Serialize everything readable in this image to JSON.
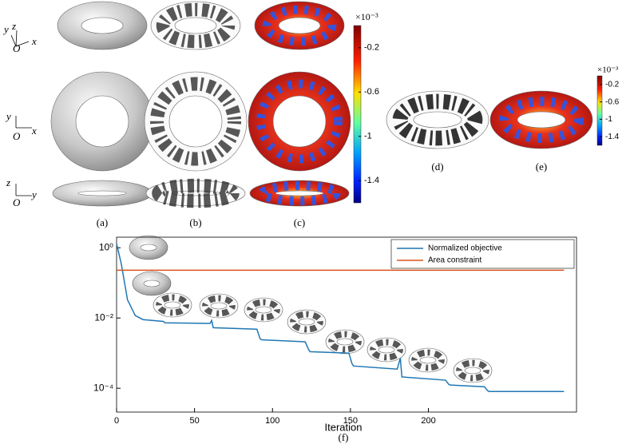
{
  "panels": {
    "labels": [
      "(a)",
      "(b)",
      "(c)",
      "(d)",
      "(e)",
      "(f)"
    ],
    "triads": [
      [
        "y",
        "z",
        "O",
        "x"
      ],
      [
        "y",
        "O",
        "x"
      ],
      [
        "z",
        "O",
        "y"
      ]
    ],
    "colorbars": [
      {
        "label": "×10⁻³",
        "lim": [
          0,
          -1.6
        ],
        "ticks": [
          -0.2,
          -0.6,
          -1.0,
          -1.4
        ]
      },
      {
        "label": "×10⁻³",
        "lim": [
          0,
          -1.6
        ],
        "ticks": [
          -0.2,
          -0.6,
          -1.0,
          -1.4
        ]
      }
    ]
  },
  "chart_data": {
    "type": "line",
    "xlabel": "Iteration",
    "log_y": true,
    "legend": "upper right",
    "x": [
      0,
      3,
      7,
      12,
      17,
      30,
      31,
      60,
      61,
      62,
      90,
      92,
      93,
      121,
      123,
      124,
      149,
      151,
      152,
      180,
      182,
      183,
      211,
      213,
      214,
      236,
      238,
      239,
      287
    ],
    "series": [
      {
        "name": "Normalized objective",
        "color": "#1f77b4",
        "values": [
          1.3,
          0.35,
          0.033,
          0.0117,
          0.009,
          0.008,
          0.0073,
          0.007,
          0.0085,
          0.0053,
          0.0048,
          0.0026,
          0.0024,
          0.0021,
          0.0013,
          0.0011,
          0.001,
          0.0005,
          0.00043,
          0.00035,
          0.00072,
          0.00021,
          0.00017,
          0.00013,
          0.000124,
          0.00011,
          8.5e-05,
          8.1e-05,
          8.1e-05
        ]
      },
      {
        "name": "Area constraint",
        "color": "#d95319",
        "values": [
          0.23,
          0.23,
          0.23,
          0.23,
          0.23,
          0.23,
          0.23,
          0.23,
          0.23,
          0.23,
          0.23,
          0.23,
          0.23,
          0.23,
          0.23,
          0.23,
          0.23,
          0.23,
          0.23,
          0.23,
          0.23,
          0.23,
          0.23,
          0.23,
          0.23,
          0.23,
          0.23,
          0.23,
          0.23
        ]
      }
    ],
    "xlim": [
      0,
      295
    ],
    "xticks": [
      0,
      50,
      100,
      150,
      200
    ],
    "ylim": [
      2.1e-05,
      2
    ],
    "yticks": [
      {
        "value": 1,
        "label": "10⁰"
      },
      {
        "value": 0.01,
        "label": "10⁻²"
      },
      {
        "value": 0.0001,
        "label": "10⁻⁴"
      }
    ]
  }
}
